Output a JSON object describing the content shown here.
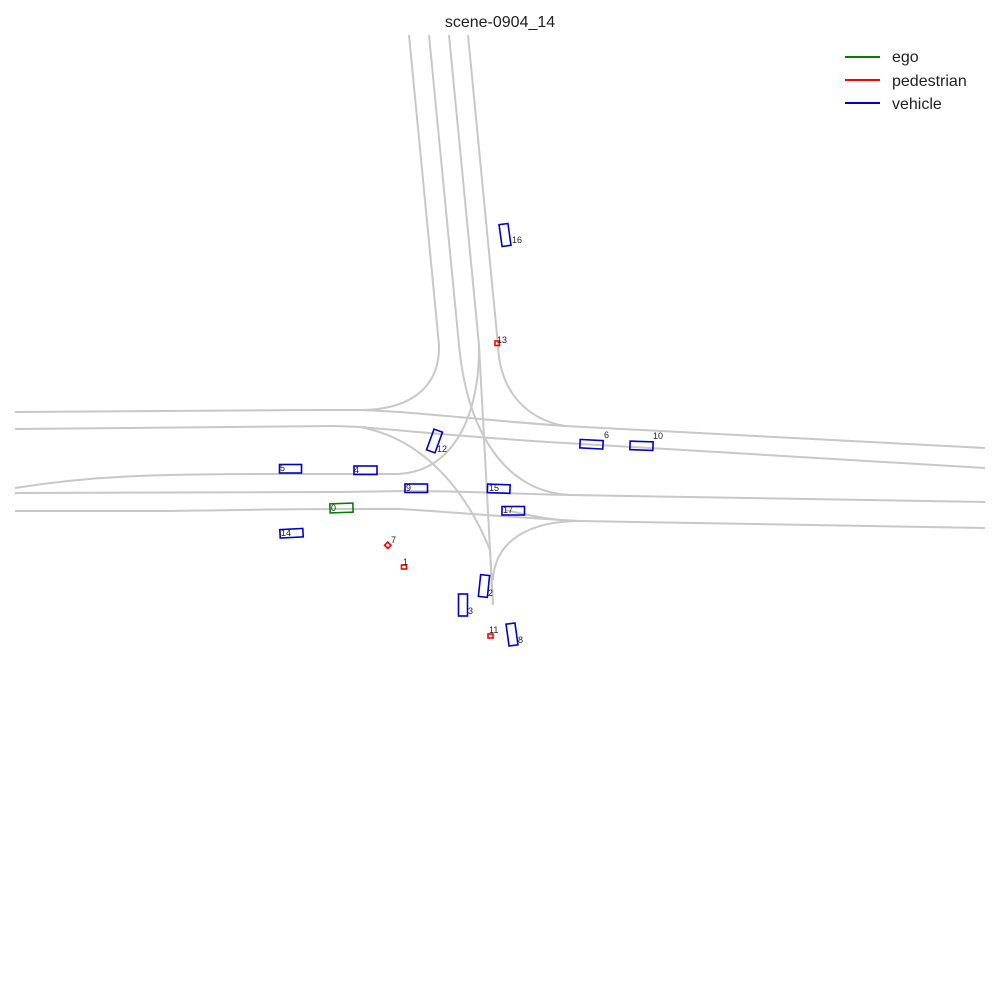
{
  "title": "scene-0904_14",
  "legend": [
    {
      "label": "ego",
      "color": "#008000"
    },
    {
      "label": "pedestrian",
      "color": "#ff0000"
    },
    {
      "label": "vehicle",
      "color": "#0000cc"
    }
  ],
  "agents": [
    {
      "id": "0",
      "kind": "ego"
    },
    {
      "id": "1",
      "kind": "pedestrian"
    },
    {
      "id": "2",
      "kind": "vehicle"
    },
    {
      "id": "3",
      "kind": "vehicle"
    },
    {
      "id": "4",
      "kind": "vehicle"
    },
    {
      "id": "5",
      "kind": "vehicle"
    },
    {
      "id": "6",
      "kind": "vehicle"
    },
    {
      "id": "7",
      "kind": "pedestrian"
    },
    {
      "id": "8",
      "kind": "vehicle"
    },
    {
      "id": "9",
      "kind": "vehicle"
    },
    {
      "id": "10",
      "kind": "vehicle"
    },
    {
      "id": "11",
      "kind": "pedestrian"
    },
    {
      "id": "12",
      "kind": "vehicle"
    },
    {
      "id": "13",
      "kind": "pedestrian"
    },
    {
      "id": "14",
      "kind": "vehicle"
    },
    {
      "id": "15",
      "kind": "vehicle"
    },
    {
      "id": "16",
      "kind": "vehicle"
    },
    {
      "id": "17",
      "kind": "vehicle"
    }
  ]
}
